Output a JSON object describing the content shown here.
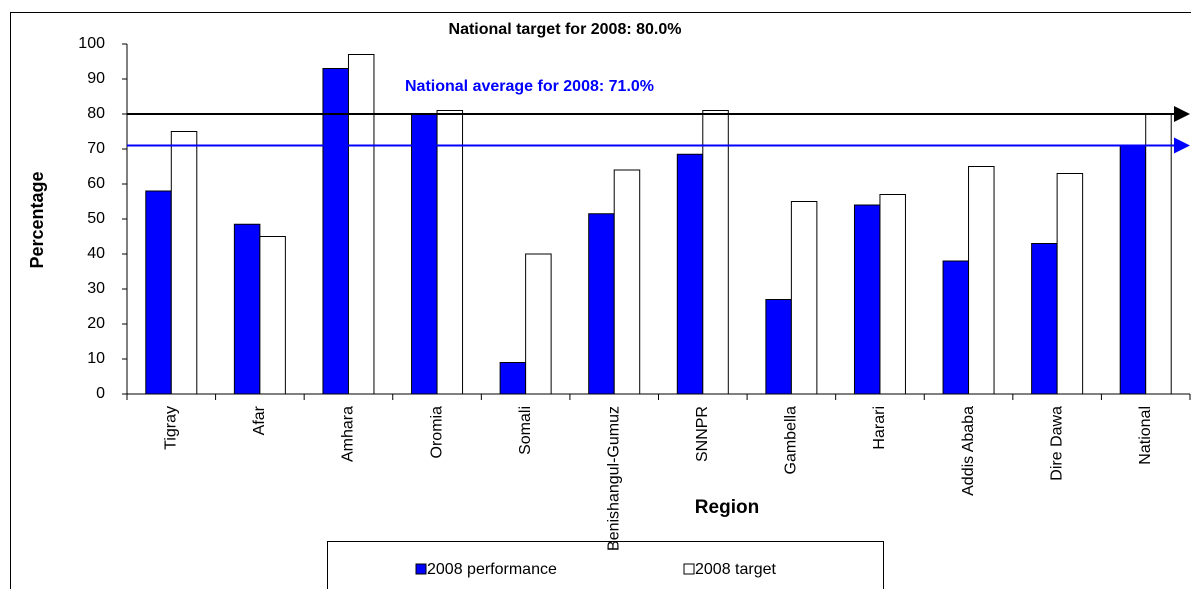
{
  "chart_data": {
    "type": "bar",
    "title": "National target for 2008: 80.0%",
    "x_label": "Region",
    "y_label": "Percentage",
    "categories": [
      "Tigray",
      "Afar",
      "Amhara",
      "Oromia",
      "Somali",
      "Benishangul-Gumuz",
      "SNNPR",
      "Gambella",
      "Harari",
      "Addis Ababa",
      "Dire Dawa",
      "National"
    ],
    "series": [
      {
        "name": "2008 performance",
        "color": "#0000ff",
        "values": [
          58,
          48.5,
          93,
          80,
          9,
          51.5,
          68.5,
          27,
          54,
          38,
          43,
          71
        ]
      },
      {
        "name": "2008 target",
        "color": "#ffffff",
        "values": [
          75,
          45,
          97,
          81,
          40,
          64,
          81,
          55,
          57,
          65,
          63,
          80
        ]
      }
    ],
    "reference_lines": [
      {
        "value": 80,
        "label": "National target for 2008: 80.0%",
        "color": "#000000"
      },
      {
        "value": 71,
        "label": "National average for 2008: 71.0%",
        "color": "#0000ff"
      }
    ],
    "ylim": [
      0,
      100
    ],
    "yticks": [
      0,
      10,
      20,
      30,
      40,
      50,
      60,
      70,
      80,
      90,
      100
    ],
    "grid": false
  }
}
